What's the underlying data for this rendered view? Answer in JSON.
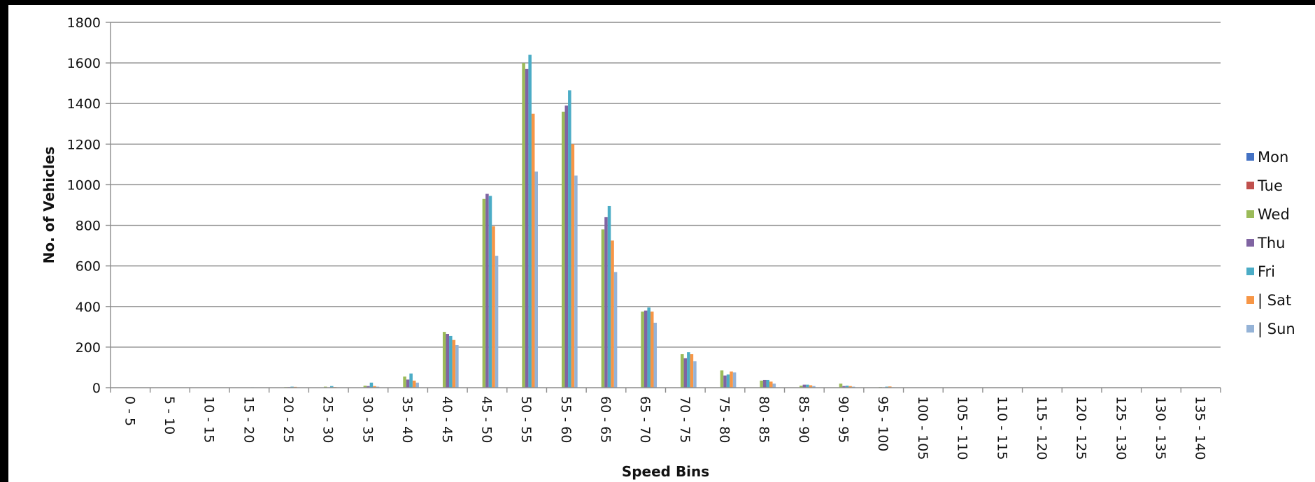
{
  "chart_data": {
    "type": "bar",
    "title": "",
    "xlabel": "Speed Bins",
    "ylabel": "No. of Vehicles",
    "ylim": [
      0,
      1800
    ],
    "yticks": [
      0,
      200,
      400,
      600,
      800,
      1000,
      1200,
      1400,
      1600,
      1800
    ],
    "grid": true,
    "legend_position": "right",
    "categories": [
      "0 - 5",
      "5 - 10",
      "10 - 15",
      "15 - 20",
      "20 - 25",
      "25 - 30",
      "30 - 35",
      "35 - 40",
      "40 - 45",
      "45 - 50",
      "50 - 55",
      "55 - 60",
      "60 - 65",
      "65 - 70",
      "70 - 75",
      "75 - 80",
      "80 - 85",
      "85 - 90",
      "90 - 95",
      "95 - 100",
      "100 - 105",
      "105 - 110",
      "110 - 115",
      "115 - 120",
      "120 - 125",
      "125 - 130",
      "130 - 135",
      "135 - 140"
    ],
    "series": [
      {
        "name": "Mon",
        "color": "#4472C4",
        "values": [
          0,
          0,
          0,
          0,
          0,
          0,
          0,
          0,
          0,
          0,
          0,
          0,
          0,
          0,
          0,
          0,
          0,
          0,
          0,
          0,
          0,
          0,
          0,
          0,
          0,
          0,
          0,
          0
        ]
      },
      {
        "name": "Tue",
        "color": "#C0504D",
        "values": [
          0,
          0,
          0,
          0,
          0,
          0,
          0,
          0,
          0,
          0,
          0,
          0,
          0,
          0,
          0,
          0,
          0,
          0,
          0,
          0,
          0,
          0,
          0,
          0,
          0,
          0,
          0,
          0
        ]
      },
      {
        "name": "Wed",
        "color": "#9BBB59",
        "values": [
          0,
          0,
          0,
          1,
          3,
          5,
          10,
          55,
          275,
          930,
          1600,
          1360,
          780,
          375,
          165,
          85,
          35,
          10,
          20,
          3,
          0,
          0,
          0,
          0,
          0,
          0,
          0,
          0
        ]
      },
      {
        "name": "Thu",
        "color": "#8064A2",
        "values": [
          0,
          0,
          0,
          1,
          3,
          2,
          8,
          40,
          265,
          955,
          1570,
          1390,
          840,
          380,
          145,
          60,
          38,
          15,
          8,
          2,
          0,
          0,
          0,
          0,
          0,
          0,
          0,
          0
        ]
      },
      {
        "name": "Fri",
        "color": "#4BACC6",
        "values": [
          0,
          0,
          0,
          2,
          5,
          8,
          25,
          70,
          255,
          945,
          1640,
          1465,
          895,
          395,
          175,
          65,
          38,
          15,
          10,
          5,
          0,
          0,
          0,
          0,
          0,
          0,
          0,
          0
        ]
      },
      {
        "name": "| Sat",
        "color": "#F79646",
        "values": [
          0,
          0,
          0,
          1,
          4,
          3,
          8,
          35,
          235,
          795,
          1350,
          1200,
          725,
          375,
          165,
          80,
          30,
          12,
          8,
          6,
          0,
          0,
          0,
          0,
          0,
          0,
          0,
          0
        ]
      },
      {
        "name": "| Sun",
        "color": "#95B3D7",
        "values": [
          0,
          0,
          0,
          0,
          2,
          2,
          5,
          25,
          210,
          650,
          1065,
          1045,
          570,
          320,
          130,
          75,
          20,
          8,
          5,
          2,
          0,
          0,
          0,
          0,
          0,
          0,
          0,
          0
        ]
      }
    ]
  }
}
